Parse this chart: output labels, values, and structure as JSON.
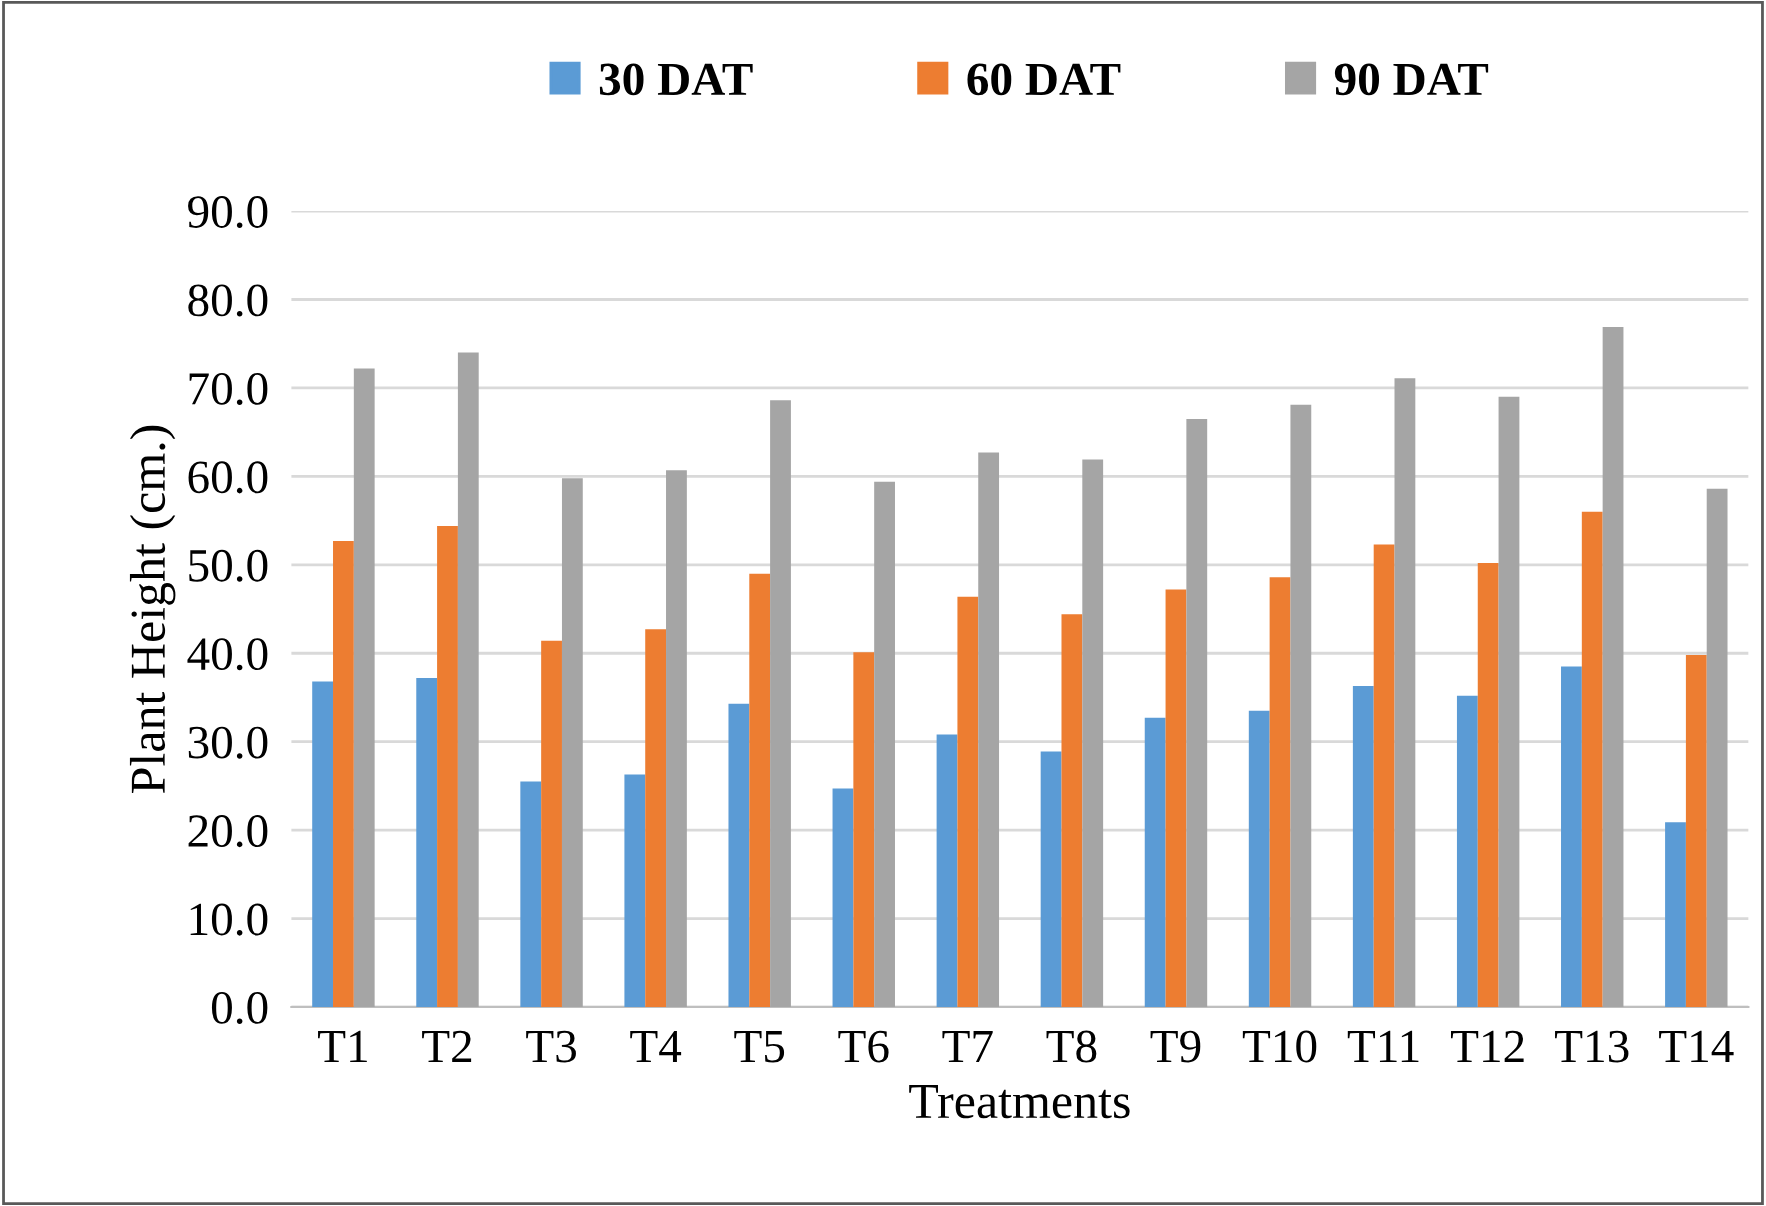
{
  "chart_data": {
    "type": "bar",
    "xlabel": "Treatments",
    "ylabel": "Plant Height (cm.)",
    "categories": [
      "T1",
      "T2",
      "T3",
      "T4",
      "T5",
      "T6",
      "T7",
      "T8",
      "T9",
      "T10",
      "T11",
      "T12",
      "T13",
      "T14"
    ],
    "series": [
      {
        "name": "30 DAT",
        "color": "#5b9bd5",
        "values": [
          36.8,
          37.2,
          25.5,
          26.3,
          34.3,
          24.7,
          30.8,
          28.9,
          32.7,
          33.5,
          36.3,
          35.2,
          38.5,
          20.9
        ]
      },
      {
        "name": "60 DAT",
        "color": "#ed7d31",
        "values": [
          52.7,
          54.4,
          41.4,
          42.7,
          49.0,
          40.1,
          46.4,
          44.4,
          47.2,
          48.6,
          52.3,
          50.2,
          56.0,
          39.8
        ]
      },
      {
        "name": "90 DAT",
        "color": "#a5a5a5",
        "values": [
          72.2,
          74.0,
          59.8,
          60.7,
          68.6,
          59.4,
          62.7,
          61.9,
          66.5,
          68.1,
          71.1,
          69.0,
          76.9,
          58.6
        ]
      }
    ],
    "ylim": [
      0,
      90
    ],
    "yticks": [
      {
        "value": 0,
        "label": "0.0"
      },
      {
        "value": 10,
        "label": "10.0"
      },
      {
        "value": 20,
        "label": "20.0"
      },
      {
        "value": 30,
        "label": "30.0"
      },
      {
        "value": 40,
        "label": "40.0"
      },
      {
        "value": 50,
        "label": "50.0"
      },
      {
        "value": 60,
        "label": "60.0"
      },
      {
        "value": 70,
        "label": "70.0"
      },
      {
        "value": 80,
        "label": "80.0"
      },
      {
        "value": 90,
        "label": "90.0"
      }
    ],
    "grid": "y",
    "legend": "top"
  }
}
